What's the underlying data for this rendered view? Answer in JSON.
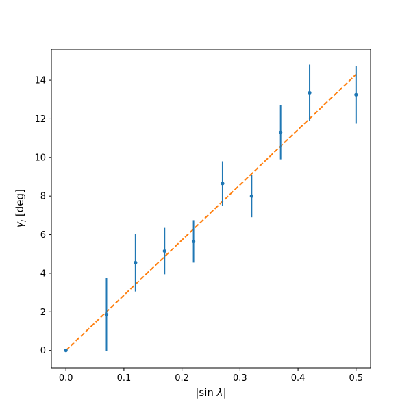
{
  "chart_data": {
    "type": "scatter",
    "xlabel": "|sin λ|",
    "ylabel": "γ_l [deg]",
    "xlim": [
      -0.025,
      0.525
    ],
    "ylim": [
      -0.9,
      15.6
    ],
    "xticks": [
      0.0,
      0.1,
      0.2,
      0.3,
      0.4,
      0.5
    ],
    "xtick_labels": [
      "0.0",
      "0.1",
      "0.2",
      "0.3",
      "0.4",
      "0.5"
    ],
    "yticks": [
      0,
      2,
      4,
      6,
      8,
      10,
      12,
      14
    ],
    "ytick_labels": [
      "0",
      "2",
      "4",
      "6",
      "8",
      "10",
      "12",
      "14"
    ],
    "grid": false,
    "series": [
      {
        "kind": "errorbar",
        "color": "#1f77b4",
        "x": [
          0.0,
          0.07,
          0.12,
          0.17,
          0.22,
          0.27,
          0.32,
          0.37,
          0.42,
          0.5
        ],
        "y": [
          0.0,
          1.85,
          4.55,
          5.15,
          5.65,
          8.65,
          8.0,
          11.3,
          13.35,
          13.25
        ],
        "yerr": [
          0.0,
          1.9,
          1.5,
          1.2,
          1.1,
          1.15,
          1.1,
          1.4,
          1.45,
          1.5
        ]
      },
      {
        "kind": "fit-line",
        "style": "dashed",
        "color": "#ff7f0e",
        "x": [
          0.0,
          0.5
        ],
        "y": [
          0.0,
          14.3
        ]
      }
    ]
  }
}
